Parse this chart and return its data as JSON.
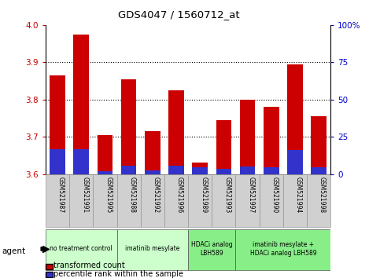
{
  "title": "GDS4047 / 1560712_at",
  "samples": [
    "GSM521987",
    "GSM521991",
    "GSM521995",
    "GSM521988",
    "GSM521992",
    "GSM521996",
    "GSM521989",
    "GSM521993",
    "GSM521997",
    "GSM521990",
    "GSM521994",
    "GSM521998"
  ],
  "transformed_count": [
    3.865,
    3.975,
    3.705,
    3.855,
    3.715,
    3.825,
    3.63,
    3.745,
    3.8,
    3.78,
    3.895,
    3.755
  ],
  "percentile_rank": [
    16.5,
    16.5,
    2.0,
    5.5,
    2.5,
    5.5,
    4.5,
    3.5,
    5.0,
    4.5,
    16.0,
    4.5
  ],
  "ymin": 3.6,
  "ymax": 4.0,
  "yticks_left": [
    3.6,
    3.7,
    3.8,
    3.9,
    4.0
  ],
  "yticks_right": [
    0,
    25,
    50,
    75,
    100
  ],
  "bar_color_red": "#cc0000",
  "bar_color_blue": "#3333cc",
  "agent_groups": [
    {
      "label": "no treatment control",
      "start": 0,
      "end": 3,
      "color": "#ccffcc"
    },
    {
      "label": "imatinib mesylate",
      "start": 3,
      "end": 6,
      "color": "#ccffcc"
    },
    {
      "label": "HDACi analog\nLBH589",
      "start": 6,
      "end": 8,
      "color": "#88ee88"
    },
    {
      "label": "imatinib mesylate +\nHDACi analog LBH589",
      "start": 8,
      "end": 12,
      "color": "#88ee88"
    }
  ],
  "legend_items": [
    {
      "color": "#cc0000",
      "label": "transformed count"
    },
    {
      "color": "#3333cc",
      "label": "percentile rank within the sample"
    }
  ],
  "grid_yticks": [
    3.7,
    3.8,
    3.9
  ],
  "right_axis_color": "#0000cc",
  "left_axis_color": "#cc0000",
  "sample_box_color": "#d0d0d0",
  "fig_width": 4.83,
  "fig_height": 3.54,
  "dpi": 100
}
